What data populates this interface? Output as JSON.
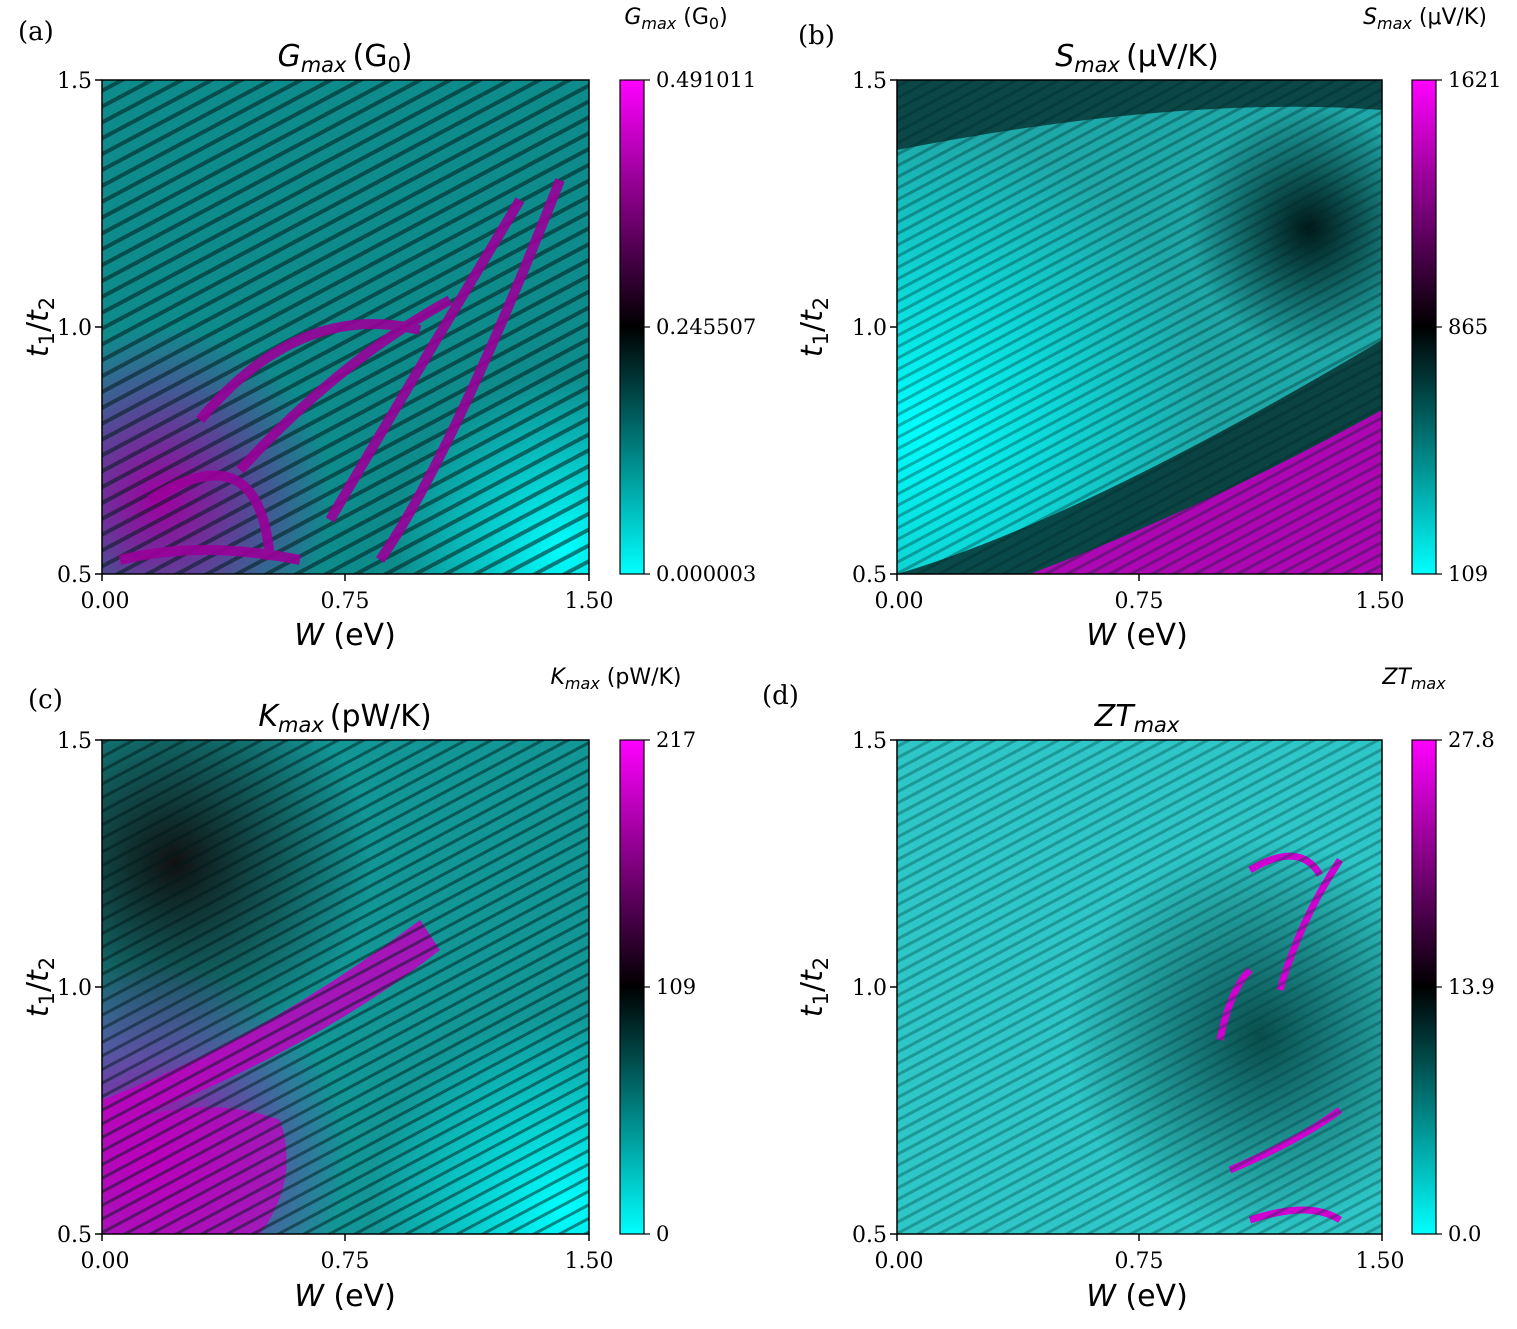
{
  "chart_data": [
    {
      "type": "heatmap",
      "panel_tag": "(a)",
      "title_var": "G",
      "title_sub": "max",
      "title_unit": "(G",
      "title_unit_sub": "0",
      "title_unit_end": ")",
      "cb_title_var": "G",
      "cb_title_sub": "max",
      "cb_title_unit": " (G",
      "cb_title_unit_sub": "0",
      "cb_title_unit_end": ")",
      "xlabel_var": "W",
      "xlabel_unit": " (eV)",
      "ylabel": "t1/t2",
      "ylabel_a": "t",
      "ylabel_a_sub": "1",
      "ylabel_sep": "/",
      "ylabel_b": "t",
      "ylabel_b_sub": "2",
      "xticks": [
        "0.00",
        "0.75",
        "1.50"
      ],
      "yticks": [
        "1.5",
        "1.0",
        "0.5"
      ],
      "xlim": [
        0,
        1.5
      ],
      "ylim": [
        0.5,
        1.5
      ],
      "colorbar_ticks": [
        "0.491011",
        "0.245507",
        "0.000003"
      ],
      "colorbar_range": [
        3e-06,
        0.491011
      ],
      "colormap": [
        "#ff00ff",
        "#000000",
        "#00ffff"
      ]
    },
    {
      "type": "heatmap",
      "panel_tag": "(b)",
      "title_var": "S",
      "title_sub": "max",
      "title_unit": "(μV/K)",
      "cb_title_var": "S",
      "cb_title_sub": "max",
      "cb_title_unit": " (μV/K)",
      "xlabel_var": "W",
      "xlabel_unit": " (eV)",
      "ylabel": "t1/t2",
      "ylabel_a": "t",
      "ylabel_a_sub": "1",
      "ylabel_sep": "/",
      "ylabel_b": "t",
      "ylabel_b_sub": "2",
      "xticks": [
        "0.00",
        "0.75",
        "1.50"
      ],
      "yticks": [
        "1.5",
        "1.0",
        "0.5"
      ],
      "xlim": [
        0,
        1.5
      ],
      "ylim": [
        0.5,
        1.5
      ],
      "colorbar_ticks": [
        "1621",
        "865",
        "109"
      ],
      "colorbar_range": [
        109,
        1621
      ],
      "colormap": [
        "#ff00ff",
        "#000000",
        "#00ffff"
      ]
    },
    {
      "type": "heatmap",
      "panel_tag": "(c)",
      "title_var": "K",
      "title_sub": "max",
      "title_unit": "(pW/K)",
      "cb_title_var": "K",
      "cb_title_sub": "max",
      "cb_title_unit": " (pW/K)",
      "xlabel_var": "W",
      "xlabel_unit": " (eV)",
      "ylabel": "t1/t2",
      "ylabel_a": "t",
      "ylabel_a_sub": "1",
      "ylabel_sep": "/",
      "ylabel_b": "t",
      "ylabel_b_sub": "2",
      "xticks": [
        "0.00",
        "0.75",
        "1.50"
      ],
      "yticks": [
        "1.5",
        "1.0",
        "0.5"
      ],
      "xlim": [
        0,
        1.5
      ],
      "ylim": [
        0.5,
        1.5
      ],
      "colorbar_ticks": [
        "217",
        "109",
        "0"
      ],
      "colorbar_range": [
        0,
        217
      ],
      "colormap": [
        "#ff00ff",
        "#000000",
        "#00ffff"
      ]
    },
    {
      "type": "heatmap",
      "panel_tag": "(d)",
      "title_var": "ZT",
      "title_sub": "max",
      "title_unit": "",
      "cb_title_var": "ZT",
      "cb_title_sub": "max",
      "cb_title_unit": "",
      "xlabel_var": "W",
      "xlabel_unit": " (eV)",
      "ylabel": "t1/t2",
      "ylabel_a": "t",
      "ylabel_a_sub": "1",
      "ylabel_sep": "/",
      "ylabel_b": "t",
      "ylabel_b_sub": "2",
      "xticks": [
        "0.00",
        "0.75",
        "1.50"
      ],
      "yticks": [
        "1.5",
        "1.0",
        "0.5"
      ],
      "xlim": [
        0,
        1.5
      ],
      "ylim": [
        0.5,
        1.5
      ],
      "colorbar_ticks": [
        "27.8",
        "13.9",
        "0.0"
      ],
      "colorbar_range": [
        0.0,
        27.8
      ],
      "colormap": [
        "#ff00ff",
        "#000000",
        "#00ffff"
      ]
    }
  ]
}
